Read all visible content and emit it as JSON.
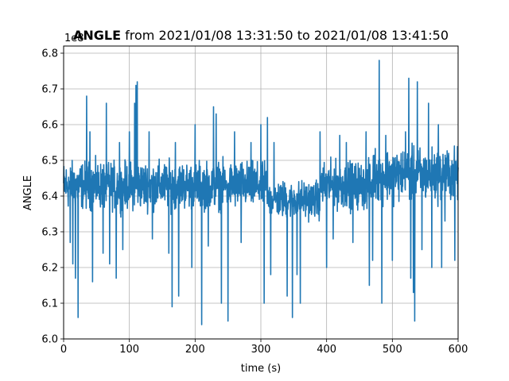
{
  "chart_data": {
    "type": "line",
    "title_bold": "ANGLE",
    "title_rest": " from 2021/01/08 13:31:50 to 2021/01/08 13:41:50",
    "xlabel": "time (s)",
    "ylabel": "ANGLE",
    "offset_label": "1e8",
    "xlim": [
      0,
      600
    ],
    "ylim": [
      6.0,
      6.82
    ],
    "xticks": [
      0,
      100,
      200,
      300,
      400,
      500,
      600
    ],
    "xtick_labels": [
      "0",
      "100",
      "200",
      "300",
      "400",
      "500",
      "600"
    ],
    "yticks": [
      6.0,
      6.1,
      6.2,
      6.3,
      6.4,
      6.5,
      6.6,
      6.7,
      6.8
    ],
    "ytick_labels": [
      "6.0",
      "6.1",
      "6.2",
      "6.3",
      "6.4",
      "6.5",
      "6.6",
      "6.7",
      "6.8"
    ],
    "grid": true,
    "series": [
      {
        "color": "#1f77b4",
        "segments": [
          {
            "x_start": 0,
            "x_end": 310,
            "center": 6.43,
            "spread": 0.075
          },
          {
            "x_start": 310,
            "x_end": 390,
            "center": 6.39,
            "spread": 0.06
          },
          {
            "x_start": 390,
            "x_end": 470,
            "center": 6.43,
            "spread": 0.075
          },
          {
            "x_start": 470,
            "x_end": 600,
            "center": 6.46,
            "spread": 0.085
          }
        ],
        "spikes": [
          [
            10,
            6.27
          ],
          [
            14,
            6.21
          ],
          [
            18,
            6.17
          ],
          [
            22,
            6.06
          ],
          [
            35,
            6.68
          ],
          [
            40,
            6.58
          ],
          [
            44,
            6.16
          ],
          [
            60,
            6.24
          ],
          [
            65,
            6.66
          ],
          [
            70,
            6.21
          ],
          [
            80,
            6.17
          ],
          [
            85,
            6.55
          ],
          [
            90,
            6.25
          ],
          [
            100,
            6.58
          ],
          [
            108,
            6.66
          ],
          [
            110,
            6.71
          ],
          [
            112,
            6.72
          ],
          [
            130,
            6.58
          ],
          [
            135,
            6.28
          ],
          [
            160,
            6.24
          ],
          [
            165,
            6.09
          ],
          [
            170,
            6.55
          ],
          [
            175,
            6.12
          ],
          [
            195,
            6.2
          ],
          [
            200,
            6.6
          ],
          [
            210,
            6.04
          ],
          [
            220,
            6.26
          ],
          [
            228,
            6.65
          ],
          [
            232,
            6.63
          ],
          [
            240,
            6.1
          ],
          [
            250,
            6.05
          ],
          [
            260,
            6.58
          ],
          [
            270,
            6.27
          ],
          [
            285,
            6.55
          ],
          [
            300,
            6.6
          ],
          [
            305,
            6.1
          ],
          [
            310,
            6.62
          ],
          [
            315,
            6.18
          ],
          [
            320,
            6.55
          ],
          [
            340,
            6.12
          ],
          [
            348,
            6.06
          ],
          [
            355,
            6.18
          ],
          [
            360,
            6.1
          ],
          [
            390,
            6.58
          ],
          [
            400,
            6.2
          ],
          [
            410,
            6.28
          ],
          [
            420,
            6.57
          ],
          [
            430,
            6.55
          ],
          [
            440,
            6.27
          ],
          [
            460,
            6.58
          ],
          [
            465,
            6.15
          ],
          [
            470,
            6.22
          ],
          [
            480,
            6.78
          ],
          [
            484,
            6.1
          ],
          [
            490,
            6.57
          ],
          [
            500,
            6.22
          ],
          [
            520,
            6.58
          ],
          [
            525,
            6.73
          ],
          [
            528,
            6.17
          ],
          [
            532,
            6.13
          ],
          [
            534,
            6.05
          ],
          [
            538,
            6.72
          ],
          [
            545,
            6.25
          ],
          [
            555,
            6.66
          ],
          [
            560,
            6.2
          ],
          [
            570,
            6.6
          ],
          [
            575,
            6.2
          ],
          [
            580,
            6.33
          ],
          [
            595,
            6.22
          ]
        ]
      }
    ]
  }
}
